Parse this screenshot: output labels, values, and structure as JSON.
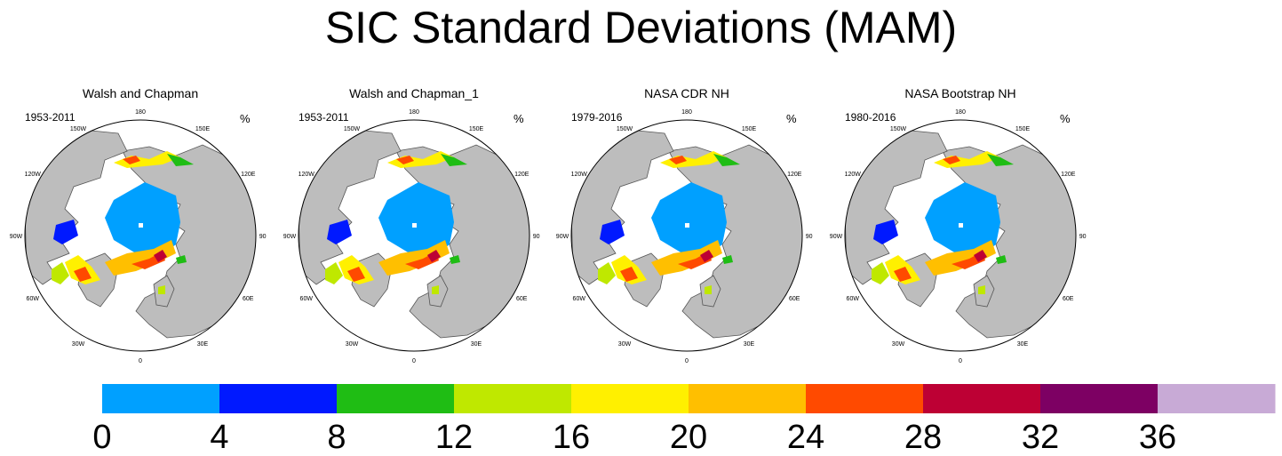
{
  "title": "SIC Standard Deviations (MAM)",
  "unit_label": "%",
  "longitude_labels": [
    "180",
    "150E",
    "120E",
    "90E",
    "60E",
    "30E",
    "0",
    "30W",
    "60W",
    "90W",
    "120W",
    "150W"
  ],
  "panels": [
    {
      "title": "Walsh and Chapman",
      "period": "1953-2011",
      "icon": "arctic-polar-map"
    },
    {
      "title": "Walsh and Chapman_1",
      "period": "1953-2011",
      "icon": "arctic-polar-map"
    },
    {
      "title": "NASA CDR NH",
      "period": "1979-2016",
      "icon": "arctic-polar-map"
    },
    {
      "title": "NASA Bootstrap NH",
      "period": "1980-2016",
      "icon": "arctic-polar-map"
    }
  ],
  "chart_data": {
    "type": "heatmap",
    "title": "SIC Standard Deviations (MAM)",
    "unit": "%",
    "colorbar": {
      "levels": [
        0,
        4,
        8,
        12,
        16,
        20,
        24,
        28,
        32,
        36,
        40
      ],
      "tick_labels": [
        "0",
        "4",
        "8",
        "12",
        "16",
        "20",
        "24",
        "28",
        "32",
        "36"
      ],
      "colors": [
        "#00a0ff",
        "#0019ff",
        "#1fbd14",
        "#bfe800",
        "#fff000",
        "#ffbf00",
        "#ff4a00",
        "#bd0034",
        "#7d0063",
        "#c8aad6"
      ]
    },
    "maps": [
      {
        "title": "Walsh and Chapman",
        "period": "1953-2011"
      },
      {
        "title": "Walsh and Chapman_1",
        "period": "1953-2011"
      },
      {
        "title": "NASA CDR NH",
        "period": "1979-2016"
      },
      {
        "title": "NASA Bootstrap NH",
        "period": "1980-2016"
      }
    ]
  }
}
